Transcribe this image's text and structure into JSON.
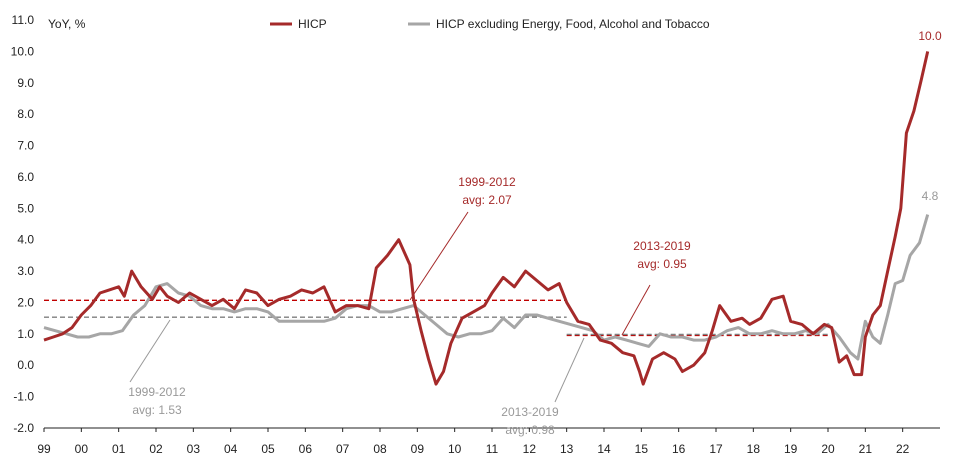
{
  "chart_data": {
    "type": "line",
    "ylabel": "YoY, %",
    "ylim": [
      -2.0,
      11.0
    ],
    "yticks": [
      "-2.0",
      "-1.0",
      "0.0",
      "1.0",
      "2.0",
      "3.0",
      "4.0",
      "5.0",
      "6.0",
      "7.0",
      "8.0",
      "9.0",
      "10.0",
      "11.0"
    ],
    "xticks": [
      "99",
      "00",
      "01",
      "02",
      "03",
      "04",
      "05",
      "06",
      "07",
      "08",
      "09",
      "10",
      "11",
      "12",
      "13",
      "14",
      "15",
      "16",
      "17",
      "18",
      "19",
      "20",
      "21",
      "22"
    ],
    "xlim": [
      1999.0,
      2023.0
    ],
    "grid": false,
    "legend": "top",
    "series": [
      {
        "name": "HICP",
        "color": "#a52a2a",
        "points": [
          [
            1999.0,
            0.8
          ],
          [
            1999.25,
            0.9
          ],
          [
            1999.5,
            1.0
          ],
          [
            1999.75,
            1.2
          ],
          [
            2000.0,
            1.6
          ],
          [
            2000.25,
            1.9
          ],
          [
            2000.5,
            2.3
          ],
          [
            2000.75,
            2.4
          ],
          [
            2001.0,
            2.5
          ],
          [
            2001.15,
            2.2
          ],
          [
            2001.35,
            3.0
          ],
          [
            2001.6,
            2.5
          ],
          [
            2001.9,
            2.1
          ],
          [
            2002.1,
            2.5
          ],
          [
            2002.3,
            2.2
          ],
          [
            2002.6,
            2.0
          ],
          [
            2002.9,
            2.3
          ],
          [
            2003.2,
            2.1
          ],
          [
            2003.5,
            1.9
          ],
          [
            2003.8,
            2.1
          ],
          [
            2004.1,
            1.8
          ],
          [
            2004.4,
            2.4
          ],
          [
            2004.7,
            2.3
          ],
          [
            2005.0,
            1.9
          ],
          [
            2005.3,
            2.1
          ],
          [
            2005.6,
            2.2
          ],
          [
            2005.9,
            2.4
          ],
          [
            2006.2,
            2.3
          ],
          [
            2006.5,
            2.5
          ],
          [
            2006.8,
            1.7
          ],
          [
            2007.1,
            1.9
          ],
          [
            2007.4,
            1.9
          ],
          [
            2007.7,
            1.8
          ],
          [
            2007.9,
            3.1
          ],
          [
            2008.2,
            3.5
          ],
          [
            2008.5,
            4.0
          ],
          [
            2008.8,
            3.2
          ],
          [
            2008.9,
            2.1
          ],
          [
            2009.1,
            1.1
          ],
          [
            2009.3,
            0.2
          ],
          [
            2009.5,
            -0.6
          ],
          [
            2009.7,
            -0.2
          ],
          [
            2009.9,
            0.7
          ],
          [
            2010.2,
            1.5
          ],
          [
            2010.5,
            1.7
          ],
          [
            2010.8,
            1.9
          ],
          [
            2011.0,
            2.3
          ],
          [
            2011.3,
            2.8
          ],
          [
            2011.6,
            2.5
          ],
          [
            2011.9,
            3.0
          ],
          [
            2012.2,
            2.7
          ],
          [
            2012.5,
            2.4
          ],
          [
            2012.8,
            2.6
          ],
          [
            2013.0,
            2.0
          ],
          [
            2013.3,
            1.4
          ],
          [
            2013.6,
            1.3
          ],
          [
            2013.9,
            0.8
          ],
          [
            2014.2,
            0.7
          ],
          [
            2014.5,
            0.4
          ],
          [
            2014.8,
            0.3
          ],
          [
            2014.95,
            -0.2
          ],
          [
            2015.05,
            -0.6
          ],
          [
            2015.3,
            0.2
          ],
          [
            2015.6,
            0.4
          ],
          [
            2015.9,
            0.2
          ],
          [
            2016.1,
            -0.2
          ],
          [
            2016.4,
            0.0
          ],
          [
            2016.7,
            0.4
          ],
          [
            2016.9,
            1.1
          ],
          [
            2017.1,
            1.9
          ],
          [
            2017.4,
            1.4
          ],
          [
            2017.7,
            1.5
          ],
          [
            2017.9,
            1.3
          ],
          [
            2018.2,
            1.5
          ],
          [
            2018.5,
            2.1
          ],
          [
            2018.8,
            2.2
          ],
          [
            2019.0,
            1.4
          ],
          [
            2019.3,
            1.3
          ],
          [
            2019.6,
            1.0
          ],
          [
            2019.9,
            1.3
          ],
          [
            2020.1,
            1.2
          ],
          [
            2020.3,
            0.1
          ],
          [
            2020.5,
            0.3
          ],
          [
            2020.7,
            -0.3
          ],
          [
            2020.9,
            -0.3
          ],
          [
            2021.0,
            0.9
          ],
          [
            2021.2,
            1.6
          ],
          [
            2021.4,
            1.9
          ],
          [
            2021.6,
            3.0
          ],
          [
            2021.8,
            4.1
          ],
          [
            2021.95,
            5.0
          ],
          [
            2022.1,
            7.4
          ],
          [
            2022.3,
            8.1
          ],
          [
            2022.5,
            9.1
          ],
          [
            2022.67,
            10.0
          ]
        ]
      },
      {
        "name": "HICP excluding Energy, Food, Alcohol and Tobacco",
        "color": "#a6a6a6",
        "points": [
          [
            1999.0,
            1.2
          ],
          [
            1999.3,
            1.1
          ],
          [
            1999.6,
            1.0
          ],
          [
            1999.9,
            0.9
          ],
          [
            2000.2,
            0.9
          ],
          [
            2000.5,
            1.0
          ],
          [
            2000.8,
            1.0
          ],
          [
            2001.1,
            1.1
          ],
          [
            2001.4,
            1.6
          ],
          [
            2001.7,
            1.9
          ],
          [
            2002.0,
            2.5
          ],
          [
            2002.3,
            2.6
          ],
          [
            2002.6,
            2.3
          ],
          [
            2002.9,
            2.2
          ],
          [
            2003.2,
            1.9
          ],
          [
            2003.5,
            1.8
          ],
          [
            2003.8,
            1.8
          ],
          [
            2004.1,
            1.7
          ],
          [
            2004.4,
            1.8
          ],
          [
            2004.7,
            1.8
          ],
          [
            2005.0,
            1.7
          ],
          [
            2005.3,
            1.4
          ],
          [
            2005.6,
            1.4
          ],
          [
            2005.9,
            1.4
          ],
          [
            2006.2,
            1.4
          ],
          [
            2006.5,
            1.4
          ],
          [
            2006.8,
            1.5
          ],
          [
            2007.1,
            1.8
          ],
          [
            2007.4,
            1.9
          ],
          [
            2007.7,
            1.9
          ],
          [
            2008.0,
            1.7
          ],
          [
            2008.3,
            1.7
          ],
          [
            2008.6,
            1.8
          ],
          [
            2008.9,
            1.9
          ],
          [
            2009.2,
            1.6
          ],
          [
            2009.5,
            1.3
          ],
          [
            2009.8,
            1.0
          ],
          [
            2010.1,
            0.9
          ],
          [
            2010.4,
            1.0
          ],
          [
            2010.7,
            1.0
          ],
          [
            2011.0,
            1.1
          ],
          [
            2011.3,
            1.5
          ],
          [
            2011.6,
            1.2
          ],
          [
            2011.9,
            1.6
          ],
          [
            2012.2,
            1.6
          ],
          [
            2012.5,
            1.5
          ],
          [
            2012.8,
            1.4
          ],
          [
            2013.1,
            1.3
          ],
          [
            2013.4,
            1.2
          ],
          [
            2013.7,
            1.1
          ],
          [
            2014.0,
            0.8
          ],
          [
            2014.3,
            0.9
          ],
          [
            2014.6,
            0.8
          ],
          [
            2014.9,
            0.7
          ],
          [
            2015.2,
            0.6
          ],
          [
            2015.5,
            1.0
          ],
          [
            2015.8,
            0.9
          ],
          [
            2016.1,
            0.9
          ],
          [
            2016.4,
            0.8
          ],
          [
            2016.7,
            0.8
          ],
          [
            2017.0,
            0.9
          ],
          [
            2017.3,
            1.1
          ],
          [
            2017.6,
            1.2
          ],
          [
            2017.9,
            1.0
          ],
          [
            2018.2,
            1.0
          ],
          [
            2018.5,
            1.1
          ],
          [
            2018.8,
            1.0
          ],
          [
            2019.1,
            1.0
          ],
          [
            2019.4,
            1.1
          ],
          [
            2019.7,
            1.0
          ],
          [
            2020.0,
            1.3
          ],
          [
            2020.3,
            0.9
          ],
          [
            2020.6,
            0.4
          ],
          [
            2020.8,
            0.2
          ],
          [
            2021.0,
            1.4
          ],
          [
            2021.2,
            0.9
          ],
          [
            2021.4,
            0.7
          ],
          [
            2021.6,
            1.6
          ],
          [
            2021.8,
            2.6
          ],
          [
            2022.0,
            2.7
          ],
          [
            2022.2,
            3.5
          ],
          [
            2022.45,
            3.9
          ],
          [
            2022.67,
            4.8
          ]
        ]
      }
    ],
    "averages": [
      {
        "series": "HICP",
        "from": 1999.0,
        "to": 2013.0,
        "value": 2.07,
        "color": "#c00000"
      },
      {
        "series": "HICP excluding Energy, Food, Alcohol and Tobacco",
        "from": 1999.0,
        "to": 2013.0,
        "value": 1.53,
        "color": "#7f7f7f"
      },
      {
        "series": "HICP",
        "from": 2013.0,
        "to": 2020.0,
        "value": 0.95,
        "color": "#c00000"
      },
      {
        "series": "HICP excluding Energy, Food, Alcohol and Tobacco",
        "from": 2013.0,
        "to": 2020.0,
        "value": 0.98,
        "color": "#7f7f7f"
      }
    ]
  },
  "annotations": {
    "avg_1999_2012_hicp": {
      "line1": "1999-2012",
      "line2": "avg: 2.07"
    },
    "avg_2013_2019_hicp": {
      "line1": "2013-2019",
      "line2": "avg: 0.95"
    },
    "avg_1999_2012_core": {
      "line1": "1999-2012",
      "line2": "avg: 1.53"
    },
    "avg_2013_2019_core": {
      "line1": "2013-2019",
      "line2": "avg: 0.98"
    },
    "end_hicp": "10.0",
    "end_core": "4.8"
  },
  "colors": {
    "hicp_line": "#a52a2a",
    "core_line": "#a6a6a6",
    "hicp_text": "#c0392b",
    "core_text": "#999999"
  }
}
